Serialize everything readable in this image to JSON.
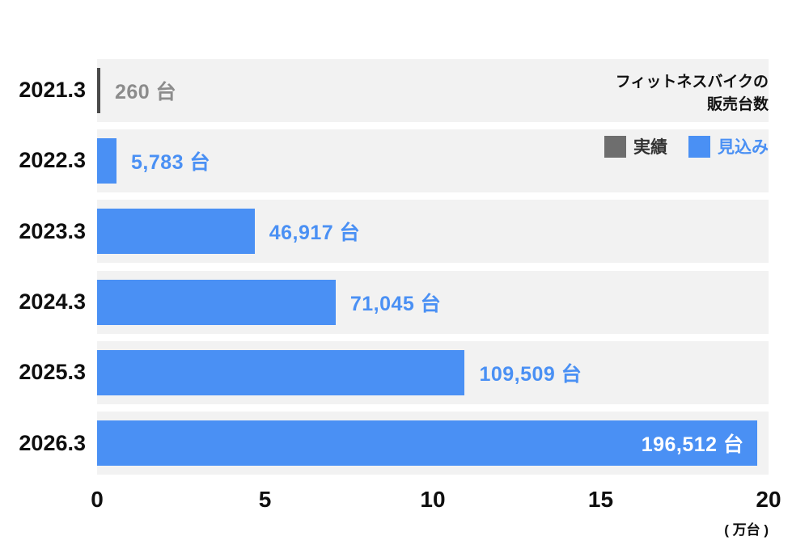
{
  "chart_data": {
    "type": "bar",
    "orientation": "horizontal",
    "title_line1": "フィットネスバイクの",
    "title_line2": "販売台数",
    "categories": [
      "2021.3",
      "2022.3",
      "2023.3",
      "2024.3",
      "2025.3",
      "2026.3"
    ],
    "values": [
      260,
      5783,
      46917,
      71045,
      109509,
      196512
    ],
    "value_labels": [
      "260 台",
      "5,783 台",
      "46,917 台",
      "71,045 台",
      "109,509 台",
      "196,512 台"
    ],
    "series_by_row": [
      "actual",
      "forecast",
      "forecast",
      "forecast",
      "forecast",
      "forecast"
    ],
    "xlim_units": [
      0,
      200000
    ],
    "x_ticks": [
      "0",
      "5",
      "10",
      "15",
      "20"
    ],
    "x_unit": "( 万台 )",
    "legend": [
      {
        "label": "実績",
        "color": "#6e6e6e"
      },
      {
        "label": "見込み",
        "color": "#4a90f4"
      }
    ],
    "colors": {
      "actual_bar": "#4a4a4a",
      "forecast_bar": "#4a90f4",
      "band_background": "#f2f2f2",
      "actual_value_label": "#8c8c8c",
      "forecast_value_label": "#4a90f4",
      "inside_value_label": "#ffffff"
    },
    "grid": false,
    "legend_position": "top-right"
  }
}
